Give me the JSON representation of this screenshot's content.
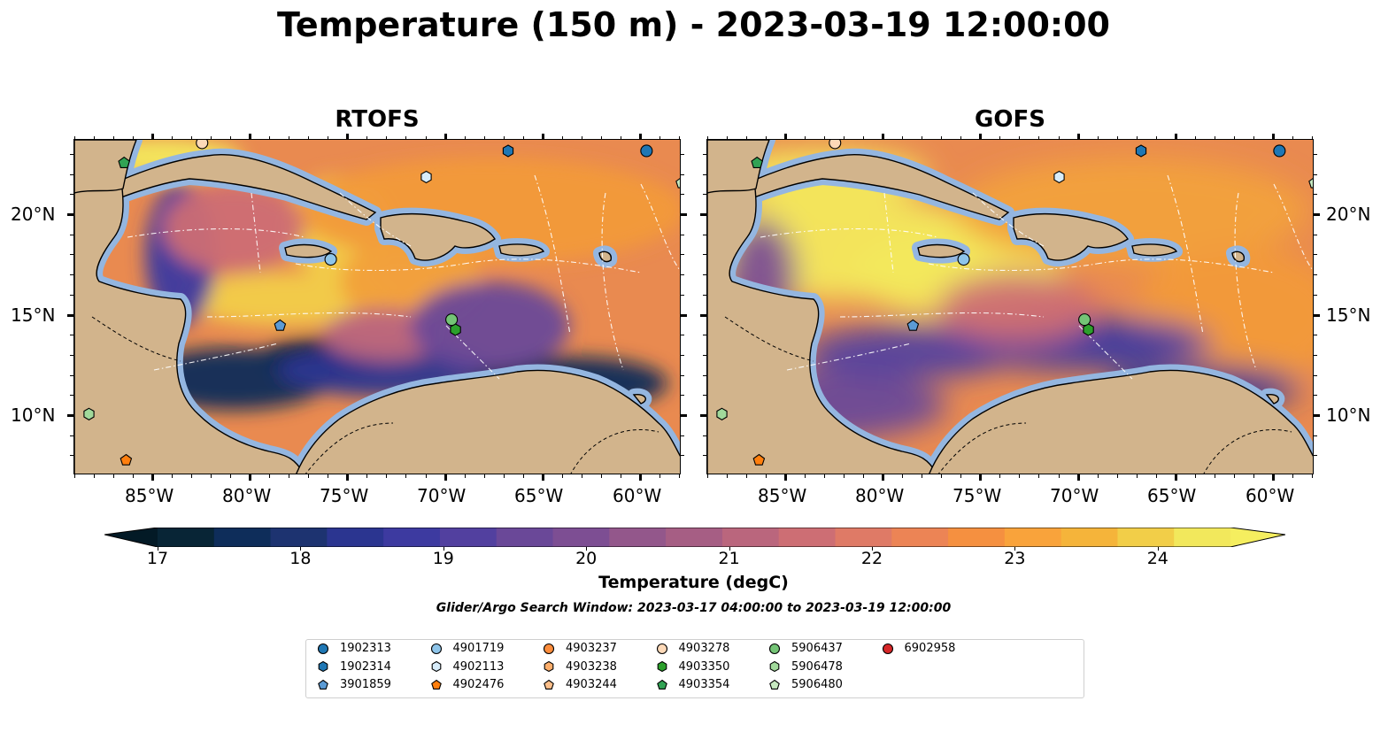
{
  "title": "Temperature (150 m) - 2023-03-19 12:00:00",
  "panels": [
    {
      "title": "RTOFS",
      "style": "rtofs"
    },
    {
      "title": "GOFS",
      "style": "gofs"
    }
  ],
  "lat_labels": [
    "20°N",
    "15°N",
    "10°N"
  ],
  "lon_labels": [
    "85°W",
    "80°W",
    "75°W",
    "70°W",
    "65°W",
    "60°W"
  ],
  "colorbar": {
    "label": "Temperature (degC)",
    "ticks": [
      "17",
      "18",
      "19",
      "20",
      "21",
      "22",
      "23",
      "24"
    ],
    "colors": [
      "#082536",
      "#0e2d5a",
      "#1d3370",
      "#2b3590",
      "#3d3aa0",
      "#52409f",
      "#6a4898",
      "#7d4e93",
      "#93578b",
      "#a65e84",
      "#ba667d",
      "#cd6e74",
      "#df7a66",
      "#ec8455",
      "#f59040",
      "#f9a33b",
      "#f5b43a",
      "#f2ce48",
      "#f2e85c"
    ],
    "colors_note_marker": "extend"
  },
  "search_window": "Glider/Argo Search Window: 2023-03-17 04:00:00 to 2023-03-19 12:00:00",
  "legend": [
    {
      "label": "1902313",
      "shape": "circle",
      "color": "#1f77b4"
    },
    {
      "label": "1902314",
      "shape": "hexagon",
      "color": "#1f77b4"
    },
    {
      "label": "3901859",
      "shape": "pentagon",
      "color": "#5b9bd5"
    },
    {
      "label": "4901719",
      "shape": "circle",
      "color": "#8ec5ea"
    },
    {
      "label": "4902113",
      "shape": "hexagon",
      "color": "#d7ecfa"
    },
    {
      "label": "4902476",
      "shape": "pentagon",
      "color": "#ff7f0e"
    },
    {
      "label": "4903237",
      "shape": "circle",
      "color": "#fd8d3c"
    },
    {
      "label": "4903238",
      "shape": "hexagon",
      "color": "#fdae6b"
    },
    {
      "label": "4903244",
      "shape": "pentagon",
      "color": "#fdbf8a"
    },
    {
      "label": "4903278",
      "shape": "circle",
      "color": "#fdd9b8"
    },
    {
      "label": "4903350",
      "shape": "hexagon",
      "color": "#2ca02c"
    },
    {
      "label": "4903354",
      "shape": "pentagon",
      "color": "#31a354"
    },
    {
      "label": "5906437",
      "shape": "circle",
      "color": "#74c476"
    },
    {
      "label": "5906478",
      "shape": "hexagon",
      "color": "#a1d99b"
    },
    {
      "label": "5906480",
      "shape": "pentagon",
      "color": "#c7e9c0"
    },
    {
      "label": "6902958",
      "shape": "circle",
      "color": "#d62728"
    }
  ],
  "map_markers": [
    {
      "id": "1902313",
      "lon": -59.7,
      "lat": 23.2
    },
    {
      "id": "1902314",
      "lon": -66.8,
      "lat": 23.2
    },
    {
      "id": "3901859",
      "lon": -78.5,
      "lat": 14.5
    },
    {
      "id": "4901719",
      "lon": -75.9,
      "lat": 17.8
    },
    {
      "id": "4902113",
      "lon": -71.0,
      "lat": 21.9
    },
    {
      "id": "4902476",
      "lon": -86.4,
      "lat": 7.8
    },
    {
      "id": "4903278",
      "lon": -82.5,
      "lat": 23.6
    },
    {
      "id": "4903350",
      "lon": -69.5,
      "lat": 14.3
    },
    {
      "id": "4903354",
      "lon": -86.5,
      "lat": 22.6
    },
    {
      "id": "5906437",
      "lon": -69.7,
      "lat": 14.8
    },
    {
      "id": "5906478",
      "lon": -88.3,
      "lat": 10.1
    },
    {
      "id": "5906480",
      "lon": -57.9,
      "lat": 21.6
    }
  ]
}
